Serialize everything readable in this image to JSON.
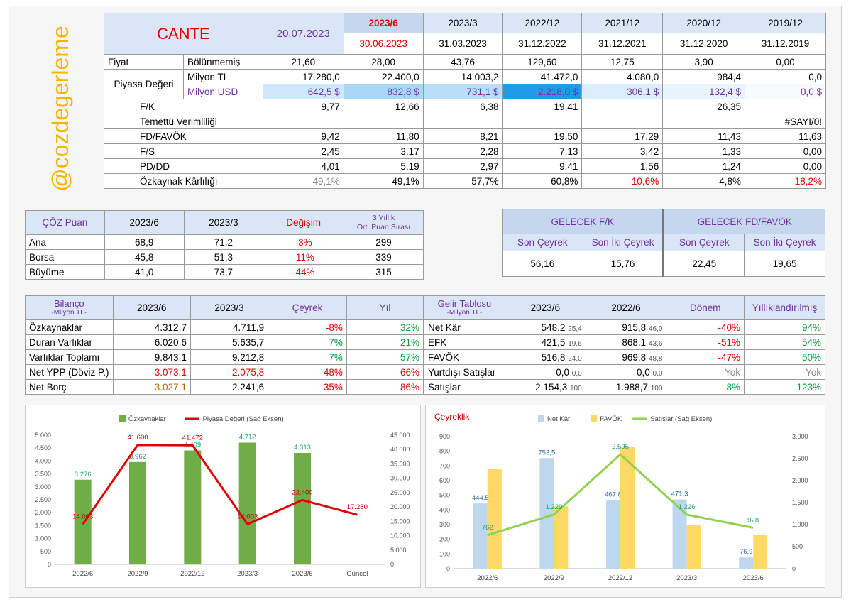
{
  "brand": {
    "handle": "@cozdegerleme"
  },
  "main": {
    "ticker": "CANTE",
    "date": "20.07.2023",
    "periods": [
      "2023/6",
      "2023/3",
      "2022/12",
      "2021/12",
      "2020/12",
      "2019/12"
    ],
    "period_dates": [
      "30.06.2023",
      "31.03.2023",
      "31.12.2022",
      "31.12.2021",
      "31.12.2020",
      "31.12.2019"
    ],
    "row_labels": {
      "fiyat": "Fiyat",
      "bolunmemis": "Bölünmemiş",
      "piyasa_degeri": "Piyasa Değeri",
      "milyon_tl": "Milyon TL",
      "milyon_usd": "Milyon USD",
      "fk": "F/K",
      "temettu": "Temettü Verimliliği",
      "fd_favok": "FD/FAVÖK",
      "fs": "F/S",
      "pd_dd": "PD/DD",
      "ozkaynak_karliligi": "Özkaynak Kârlılığı"
    },
    "rows": {
      "fiyat": [
        "21,60",
        "28,00",
        "43,76",
        "129,60",
        "12,75",
        "3,90",
        "0,00"
      ],
      "milyon_tl": [
        "17.280,0",
        "22.400,0",
        "14.003,2",
        "41.472,0",
        "4.080,0",
        "984,4",
        "0,0"
      ],
      "milyon_usd": [
        "642,5 $",
        "832,8 $",
        "731,1 $",
        "2.218,0 $",
        "306,1 $",
        "132,4 $",
        "0,0 $"
      ],
      "fk": [
        "9,77",
        "12,66",
        "6,38",
        "19,41",
        "",
        "26,35",
        ""
      ],
      "temettu": [
        "",
        "",
        "",
        "",
        "",
        "",
        "#SAYI/0!"
      ],
      "fd_favok": [
        "9,42",
        "11,80",
        "8,21",
        "19,50",
        "17,29",
        "11,43",
        "11,63"
      ],
      "fs": [
        "2,45",
        "3,17",
        "2,28",
        "7,13",
        "3,42",
        "1,33",
        "0,00"
      ],
      "pd_dd": [
        "4,01",
        "5,19",
        "2,97",
        "9,41",
        "1,56",
        "1,24",
        "0,00"
      ],
      "ozkaynak_karliligi": [
        "49,1%",
        "49,1%",
        "57,7%",
        "60,8%",
        "-10,6%",
        "4,8%",
        "-18,2%"
      ]
    },
    "usd_colors": [
      "#cfe8fb",
      "#a9d8f5",
      "#b9dff7",
      "#1f9ce6",
      "#daeefb",
      "#e8f4fc",
      "#f7fbfe"
    ]
  },
  "coz": {
    "header": [
      "ÇÖZ Puan",
      "2023/6",
      "2023/3",
      "Değişim"
    ],
    "rank_header_1": "3 Yıllık",
    "rank_header_2": "Ort. Puan Sırası",
    "rows": [
      {
        "label": "Ana",
        "v1": "68,9",
        "v2": "71,2",
        "chg": "-3%",
        "rank": "299"
      },
      {
        "label": "Borsa",
        "v1": "45,8",
        "v2": "51,3",
        "chg": "-11%",
        "rank": "339"
      },
      {
        "label": "Büyüme",
        "v1": "41,0",
        "v2": "73,7",
        "chg": "-44%",
        "rank": "315"
      }
    ]
  },
  "gelecek": {
    "fk_title": "GELECEK F/K",
    "fd_title": "GELECEK FD/FAVÖK",
    "sub": [
      "Son Çeyrek",
      "Son İki Çeyrek",
      "Son Çeyrek",
      "Son İki Çeyrek"
    ],
    "values": [
      "56,16",
      "15,76",
      "22,45",
      "19,65"
    ]
  },
  "bilanco": {
    "title": "Bilanço",
    "subtitle": "-Milyon TL-",
    "header": [
      "2023/6",
      "2023/3",
      "Çeyrek",
      "Yıl"
    ],
    "rows": [
      {
        "label": "Özkaynaklar",
        "v1": "4.312,7",
        "v2": "4.711,9",
        "q": "-8%",
        "y": "32%"
      },
      {
        "label": "Duran Varlıklar",
        "v1": "6.020,6",
        "v2": "5.635,7",
        "q": "7%",
        "y": "21%"
      },
      {
        "label": "Varlıklar Toplamı",
        "v1": "9.843,1",
        "v2": "9.212,8",
        "q": "7%",
        "y": "57%"
      },
      {
        "label": "Net YPP (Döviz P.)",
        "v1": "-3.073,1",
        "v2": "-2.075,8",
        "q": "48%",
        "y": "66%"
      },
      {
        "label": "Net Borç",
        "v1": "3.027,1",
        "v2": "2.241,6",
        "q": "35%",
        "y": "86%"
      }
    ]
  },
  "gelir": {
    "title": "Gelir Tablosu",
    "subtitle": "-Milyon TL-",
    "header": [
      "2023/6",
      "2022/6",
      "Dönem",
      "Yıllıklandırılmış"
    ],
    "rows": [
      {
        "label": "Net Kâr",
        "v1": "548,2",
        "m1": "25,4",
        "v2": "915,8",
        "m2": "46,0",
        "d": "-40%",
        "y": "94%"
      },
      {
        "label": "EFK",
        "v1": "421,5",
        "m1": "19,6",
        "v2": "868,1",
        "m2": "43,6",
        "d": "-51%",
        "y": "54%"
      },
      {
        "label": "FAVÖK",
        "v1": "516,8",
        "m1": "24,0",
        "v2": "969,8",
        "m2": "48,8",
        "d": "-47%",
        "y": "50%"
      },
      {
        "label": "Yurtdışı Satışlar",
        "v1": "0,0",
        "m1": "0,0",
        "v2": "0,0",
        "m2": "0,0",
        "d": "Yok",
        "y": "Yok"
      },
      {
        "label": "Satışlar",
        "v1": "2.154,3",
        "m1": "100",
        "v2": "1.988,7",
        "m2": "100",
        "d": "8%",
        "y": "123%"
      }
    ]
  },
  "chart_data": [
    {
      "type": "bar",
      "title": "",
      "categories": [
        "2022/6",
        "2022/9",
        "2022/12",
        "2023/3",
        "2023/6",
        "Güncel"
      ],
      "series": [
        {
          "name": "Özkaynaklar",
          "kind": "bar",
          "axis": "left",
          "color": "#70ad47",
          "values": [
            3276,
            3962,
            4409,
            4712,
            4313,
            null
          ],
          "labels": [
            "3.276",
            "3.962",
            "4.409",
            "4.712",
            "4.313",
            ""
          ]
        },
        {
          "name": "Piyasa Değeri (Sağ Eksen)",
          "kind": "line",
          "axis": "right",
          "color": "#e00000",
          "values": [
            14003,
            41600,
            41472,
            14003,
            22400,
            17280
          ],
          "labels": [
            "14.003",
            "41.600",
            "41.472",
            "14.003",
            "22.400",
            "17.280"
          ]
        }
      ],
      "ylim_left": [
        0,
        5000
      ],
      "yticks_left": [
        0,
        500,
        1000,
        1500,
        2000,
        2500,
        3000,
        3500,
        4000,
        4500,
        5000
      ],
      "yticks_left_labels": [
        "0",
        "500",
        "1.000",
        "1.500",
        "2.000",
        "2.500",
        "3.000",
        "3.500",
        "4.000",
        "4.500",
        "5.000"
      ],
      "ylim_right": [
        0,
        45000
      ],
      "yticks_right": [
        0,
        5000,
        10000,
        15000,
        20000,
        25000,
        30000,
        35000,
        40000,
        45000
      ],
      "yticks_right_labels": [
        "0",
        "5.000",
        "10.000",
        "15.000",
        "20.000",
        "25.000",
        "30.000",
        "35.000",
        "40.000",
        "45.000"
      ],
      "legend": "top"
    },
    {
      "type": "bar",
      "title": "Çeyreklik",
      "categories": [
        "2022/6",
        "2022/9",
        "2022/12",
        "2023/3",
        "2023/6"
      ],
      "series": [
        {
          "name": "Net Kâr",
          "kind": "bar",
          "axis": "left",
          "color": "#bdd7ee",
          "values": [
            444.5,
            753.5,
            467.8,
            471.3,
            76.9
          ],
          "labels": [
            "444,5",
            "753,5",
            "467,8",
            "471,3",
            "76,9"
          ]
        },
        {
          "name": "FAVÖK",
          "kind": "bar",
          "axis": "left",
          "color": "#ffd966",
          "values": [
            680,
            425,
            830,
            295,
            228
          ],
          "labels": [
            "",
            "",
            "",
            "",
            ""
          ]
        },
        {
          "name": "Satışlar (Sağ Eksen)",
          "kind": "line",
          "axis": "right",
          "color": "#92d050",
          "values": [
            762,
            1229,
            2595,
            1226,
            928
          ],
          "labels": [
            "762",
            "1.229",
            "2.595",
            "1.226",
            "928"
          ]
        }
      ],
      "ylim_left": [
        0,
        900
      ],
      "yticks_left": [
        0,
        100,
        200,
        300,
        400,
        500,
        600,
        700,
        800,
        900
      ],
      "yticks_left_labels": [
        "0",
        "100",
        "200",
        "300",
        "400",
        "500",
        "600",
        "700",
        "800",
        "900"
      ],
      "ylim_right": [
        0,
        3000
      ],
      "yticks_right": [
        0,
        500,
        1000,
        1500,
        2000,
        2500,
        3000
      ],
      "yticks_right_labels": [
        "0",
        "500",
        "1.000",
        "1.500",
        "2.000",
        "2.500",
        "3.000"
      ],
      "legend": "top"
    }
  ]
}
